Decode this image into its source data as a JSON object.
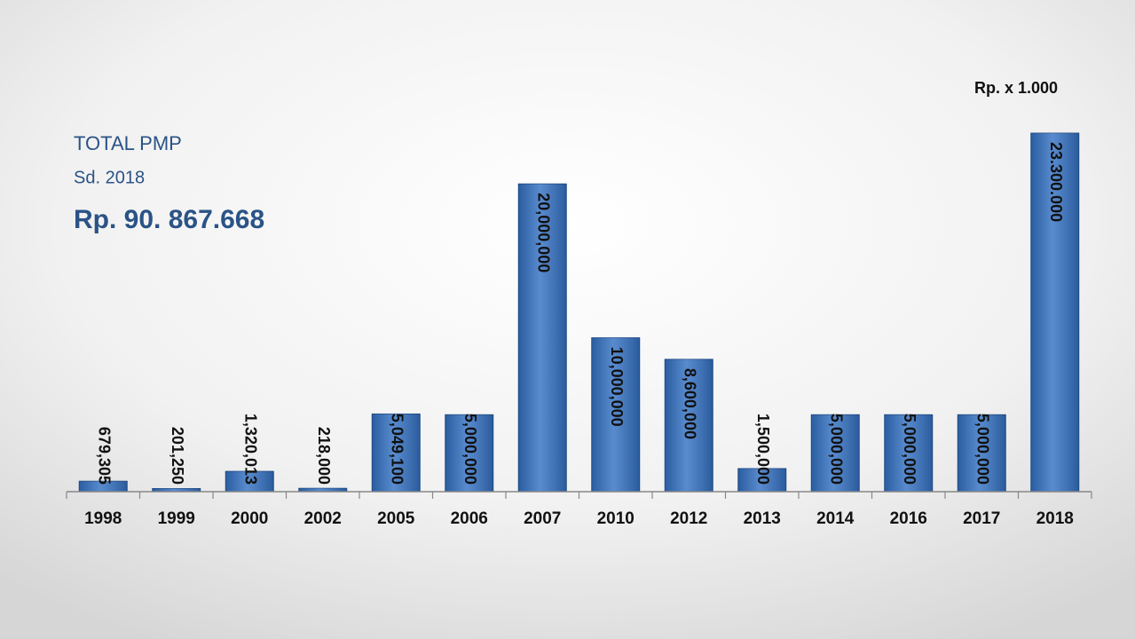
{
  "chart_data": {
    "type": "bar",
    "title": "TOTAL PMP",
    "subtitle": "Sd. 2018",
    "total": "Rp. 90. 867.668",
    "unit_note": "Rp. x 1.000",
    "categories": [
      "1998",
      "1999",
      "2000",
      "2002",
      "2005",
      "2006",
      "2007",
      "2010",
      "2012",
      "2013",
      "2014",
      "2016",
      "2017",
      "2018"
    ],
    "values": [
      679305,
      201250,
      1320013,
      218000,
      5049100,
      5000000,
      20000000,
      10000000,
      8600000,
      1500000,
      5000000,
      5000000,
      5000000,
      23300000
    ],
    "value_labels": [
      "679,305",
      "201,250",
      "1,320,013",
      "218,000",
      "5,049,100",
      "5,000,000",
      "20,000,000",
      "10,000,000",
      "8,600,000",
      "1,500,000",
      "5,000,000",
      "5,000,000",
      "5,000,000",
      "23.300.000"
    ],
    "color": "#3472c4",
    "ylim": [
      0,
      23300000
    ]
  }
}
